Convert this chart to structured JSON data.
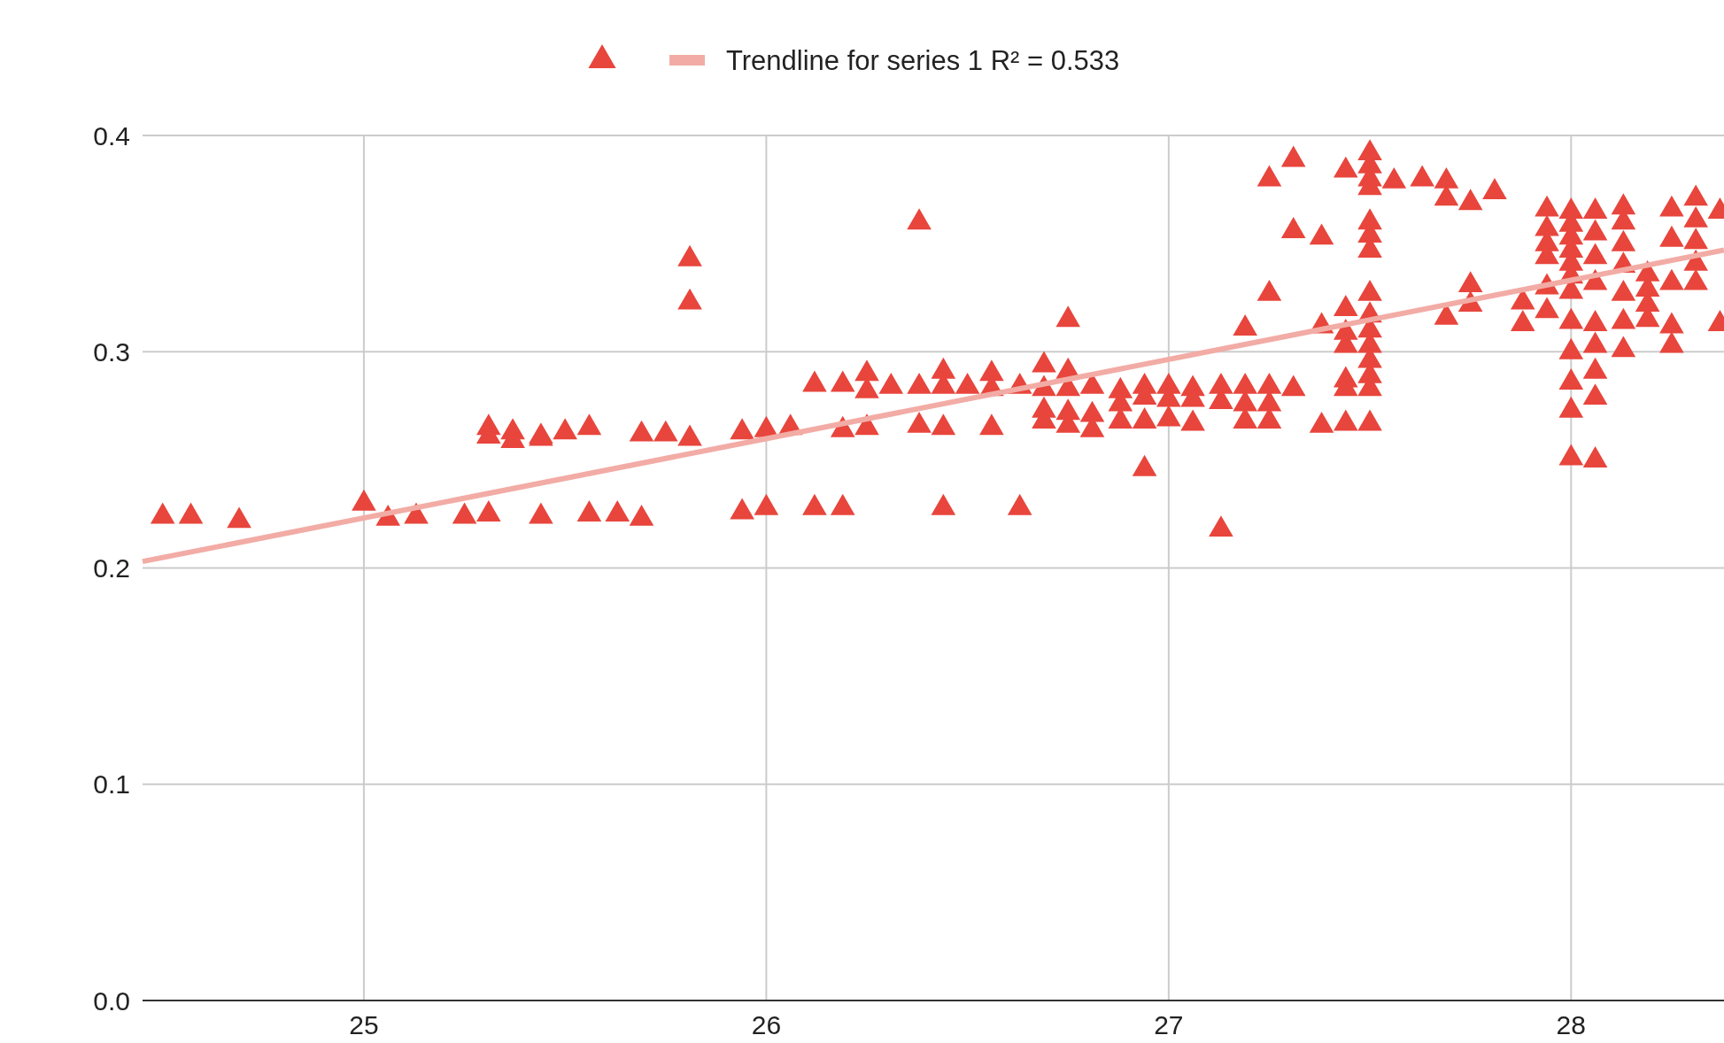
{
  "chart_data": {
    "type": "scatter",
    "legend": "top",
    "grid": true,
    "xlim": [
      24.45,
      28.38
    ],
    "xticks": [
      25,
      26,
      27,
      28
    ],
    "ylim": [
      0,
      0.4
    ],
    "yticks": [
      {
        "value": 0,
        "label": "0.0"
      },
      0.1,
      0.2,
      0.3,
      0.4
    ],
    "series": [
      {
        "marker": "triangle",
        "color": "#e8453c",
        "x": [
          24.5,
          24.57,
          24.69,
          25.0,
          25.06,
          25.13,
          25.25,
          25.31,
          25.44,
          25.56,
          25.63,
          25.69,
          25.31,
          25.31,
          25.37,
          25.37,
          25.44,
          25.44,
          25.5,
          25.56,
          25.69,
          25.75,
          25.81,
          25.81,
          25.81,
          25.94,
          26.0,
          26.06,
          25.94,
          26.0,
          26.12,
          26.19,
          26.38,
          26.12,
          26.19,
          26.25,
          26.25,
          26.31,
          26.38,
          26.44,
          26.44,
          26.5,
          26.56,
          26.56,
          26.63,
          26.69,
          26.69,
          26.75,
          26.75,
          26.75,
          26.81,
          26.19,
          26.25,
          26.38,
          26.44,
          26.56,
          26.44,
          26.63,
          26.69,
          26.69,
          26.75,
          26.75,
          26.81,
          26.81,
          26.88,
          26.88,
          26.88,
          26.94,
          26.94,
          26.94,
          26.94,
          27.0,
          27.0,
          27.0,
          27.06,
          27.06,
          27.06,
          27.13,
          27.13,
          27.13,
          27.19,
          27.19,
          27.19,
          27.19,
          27.25,
          27.25,
          27.25,
          27.25,
          27.25,
          27.31,
          27.31,
          27.31,
          27.38,
          27.38,
          27.38,
          27.44,
          27.44,
          27.44,
          27.44,
          27.44,
          27.44,
          27.44,
          27.5,
          27.5,
          27.5,
          27.5,
          27.5,
          27.5,
          27.5,
          27.5,
          27.5,
          27.5,
          27.5,
          27.5,
          27.5,
          27.5,
          27.5,
          27.56,
          27.63,
          27.69,
          27.69,
          27.69,
          27.75,
          27.75,
          27.75,
          27.81,
          27.88,
          27.88,
          27.94,
          27.94,
          27.94,
          27.94,
          27.94,
          27.94,
          28.0,
          28.0,
          28.0,
          28.0,
          28.0,
          28.0,
          28.0,
          28.0,
          28.0,
          28.0,
          28.0,
          28.0,
          28.06,
          28.06,
          28.06,
          28.06,
          28.06,
          28.06,
          28.06,
          28.06,
          28.06,
          28.13,
          28.13,
          28.13,
          28.13,
          28.13,
          28.13,
          28.13,
          28.19,
          28.19,
          28.19,
          28.19,
          28.25,
          28.25,
          28.25,
          28.25,
          28.25,
          28.31,
          28.31,
          28.31,
          28.31,
          28.31,
          28.37,
          28.37
        ],
        "values": [
          0.225,
          0.225,
          0.223,
          0.231,
          0.224,
          0.225,
          0.225,
          0.226,
          0.225,
          0.226,
          0.226,
          0.224,
          0.266,
          0.262,
          0.264,
          0.26,
          0.262,
          0.261,
          0.264,
          0.266,
          0.263,
          0.263,
          0.261,
          0.344,
          0.324,
          0.264,
          0.265,
          0.266,
          0.227,
          0.229,
          0.229,
          0.229,
          0.361,
          0.286,
          0.286,
          0.291,
          0.283,
          0.285,
          0.285,
          0.292,
          0.285,
          0.285,
          0.291,
          0.284,
          0.285,
          0.295,
          0.284,
          0.316,
          0.292,
          0.284,
          0.285,
          0.265,
          0.266,
          0.267,
          0.266,
          0.266,
          0.229,
          0.229,
          0.274,
          0.269,
          0.273,
          0.267,
          0.272,
          0.265,
          0.283,
          0.277,
          0.269,
          0.285,
          0.28,
          0.269,
          0.247,
          0.285,
          0.279,
          0.27,
          0.284,
          0.279,
          0.268,
          0.285,
          0.278,
          0.219,
          0.312,
          0.285,
          0.277,
          0.269,
          0.328,
          0.381,
          0.285,
          0.277,
          0.269,
          0.39,
          0.357,
          0.284,
          0.354,
          0.313,
          0.267,
          0.385,
          0.321,
          0.31,
          0.304,
          0.288,
          0.284,
          0.268,
          0.393,
          0.387,
          0.381,
          0.377,
          0.361,
          0.355,
          0.348,
          0.328,
          0.318,
          0.311,
          0.304,
          0.297,
          0.29,
          0.284,
          0.268,
          0.38,
          0.381,
          0.38,
          0.372,
          0.317,
          0.37,
          0.332,
          0.323,
          0.375,
          0.324,
          0.314,
          0.367,
          0.358,
          0.351,
          0.345,
          0.331,
          0.32,
          0.366,
          0.36,
          0.354,
          0.348,
          0.342,
          0.336,
          0.329,
          0.315,
          0.301,
          0.287,
          0.274,
          0.252,
          0.366,
          0.356,
          0.345,
          0.333,
          0.314,
          0.304,
          0.292,
          0.28,
          0.251,
          0.368,
          0.361,
          0.351,
          0.341,
          0.328,
          0.315,
          0.302,
          0.337,
          0.33,
          0.323,
          0.316,
          0.367,
          0.353,
          0.333,
          0.313,
          0.304,
          0.372,
          0.362,
          0.352,
          0.342,
          0.333,
          0.366,
          0.314
        ]
      },
      {
        "type": "line",
        "marker": "none",
        "name": "Trendline for series 1 R² = 0.533",
        "color": "#f2aca5",
        "x": [
          24.45,
          28.38
        ],
        "values": [
          0.203,
          0.347
        ]
      }
    ]
  }
}
